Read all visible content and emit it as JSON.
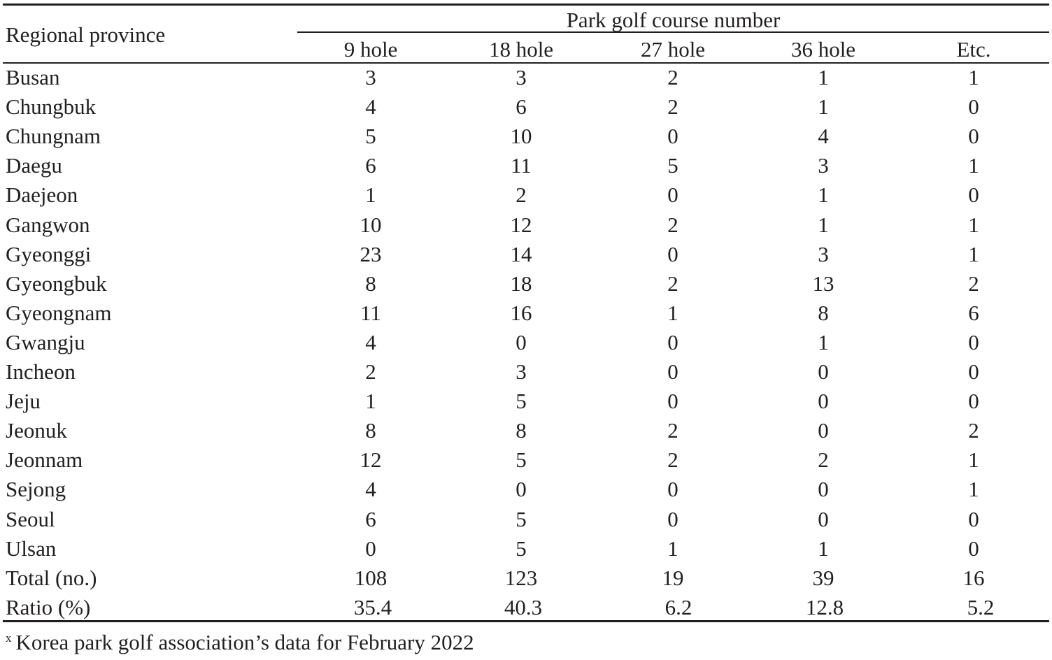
{
  "table": {
    "region_header": "Regional province",
    "group_header": "Park golf course number",
    "columns": [
      "9 hole",
      "18 hole",
      "27 hole",
      "36 hole",
      "Etc."
    ],
    "rows": [
      {
        "region": "Busan",
        "values": [
          "3",
          "3",
          "2",
          "1",
          "1"
        ]
      },
      {
        "region": "Chungbuk",
        "values": [
          "4",
          "6",
          "2",
          "1",
          "0"
        ]
      },
      {
        "region": "Chungnam",
        "values": [
          "5",
          "10",
          "0",
          "4",
          "0"
        ]
      },
      {
        "region": "Daegu",
        "values": [
          "6",
          "11",
          "5",
          "3",
          "1"
        ]
      },
      {
        "region": "Daejeon",
        "values": [
          "1",
          "2",
          "0",
          "1",
          "0"
        ]
      },
      {
        "region": "Gangwon",
        "values": [
          "10",
          "12",
          "2",
          "1",
          "1"
        ]
      },
      {
        "region": "Gyeonggi",
        "values": [
          "23",
          "14",
          "0",
          "3",
          "1"
        ]
      },
      {
        "region": "Gyeongbuk",
        "values": [
          "8",
          "18",
          "2",
          "13",
          "2"
        ]
      },
      {
        "region": "Gyeongnam",
        "values": [
          "11",
          "16",
          "1",
          "8",
          "6"
        ]
      },
      {
        "region": "Gwangju",
        "values": [
          "4",
          "0",
          "0",
          "1",
          "0"
        ]
      },
      {
        "region": "Incheon",
        "values": [
          "2",
          "3",
          "0",
          "0",
          "0"
        ]
      },
      {
        "region": "Jeju",
        "values": [
          "1",
          "5",
          "0",
          "0",
          "0"
        ]
      },
      {
        "region": "Jeonuk",
        "values": [
          "8",
          "8",
          "2",
          "0",
          "2"
        ]
      },
      {
        "region": "Jeonnam",
        "values": [
          "12",
          "5",
          "2",
          "2",
          "1"
        ]
      },
      {
        "region": "Sejong",
        "values": [
          "4",
          "0",
          "0",
          "0",
          "1"
        ]
      },
      {
        "region": "Seoul",
        "values": [
          "6",
          "5",
          "0",
          "0",
          "0"
        ]
      },
      {
        "region": "Ulsan",
        "values": [
          "0",
          "5",
          "1",
          "1",
          "0"
        ]
      },
      {
        "region": "Total (no.)",
        "values": [
          "108",
          "123",
          "19",
          "39",
          "16"
        ]
      },
      {
        "region": "Ratio (%)",
        "values": [
          "35.4",
          "40.3",
          "6.2",
          "12.8",
          "5.2"
        ]
      }
    ]
  },
  "footnote": {
    "marker": "x",
    "text": "Korea park golf association’s data for February 2022"
  }
}
